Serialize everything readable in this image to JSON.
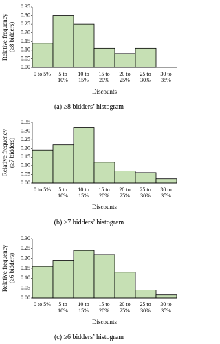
{
  "chart_data": [
    {
      "type": "bar",
      "title": "(a) ≥8 bidders’ histogram",
      "xlabel": "Discounts",
      "ylabel": "Relative frequency (≥8 bidders)",
      "categories": [
        "0 to 5%",
        "5 to 10%",
        "10 to 15%",
        "15 to 20%",
        "20 to 25%",
        "25 to 30%",
        "30 to 35%"
      ],
      "values": [
        0.14,
        0.3,
        0.25,
        0.11,
        0.08,
        0.11,
        0
      ],
      "color": "#c6e0b4",
      "ylim": [
        0,
        0.35
      ],
      "yticks": [
        {
          "value": 0,
          "label": "0.00"
        },
        {
          "value": 0.05,
          "label": "0.05"
        },
        {
          "value": 0.1,
          "label": "0.10"
        },
        {
          "value": 0.15,
          "label": "0.15"
        },
        {
          "value": 0.2,
          "label": "0.20"
        },
        {
          "value": 0.25,
          "label": "0.25"
        },
        {
          "value": 0.3,
          "label": "0.30"
        },
        {
          "value": 0.35,
          "label": "0.35"
        }
      ]
    },
    {
      "type": "bar",
      "title": "(b) ≥7 bidders’ histogram",
      "xlabel": "Discounts",
      "ylabel": "Relative frequency (≥7 bidders)",
      "categories": [
        "0 to 5%",
        "5 to 10%",
        "10 to 15%",
        "15 to 20%",
        "20 to 25%",
        "25 to 30%",
        "30 to 35%"
      ],
      "values": [
        0.19,
        0.22,
        0.32,
        0.12,
        0.07,
        0.06,
        0.025
      ],
      "color": "#c6e0b4",
      "ylim": [
        0,
        0.35
      ],
      "yticks": [
        {
          "value": 0,
          "label": "0.00"
        },
        {
          "value": 0.05,
          "label": "0.05"
        },
        {
          "value": 0.1,
          "label": "0.10"
        },
        {
          "value": 0.15,
          "label": "0.15"
        },
        {
          "value": 0.2,
          "label": "0.20"
        },
        {
          "value": 0.25,
          "label": "0.25"
        },
        {
          "value": 0.3,
          "label": "0.30"
        },
        {
          "value": 0.35,
          "label": "0.35"
        }
      ]
    },
    {
      "type": "bar",
      "title": "(c) ≥6 bidders’ histogram",
      "xlabel": "Discounts",
      "ylabel": "Relative frequency (≥6 bidders)",
      "categories": [
        "0 to 5%",
        "5 to 10%",
        "10 to 15%",
        "15 to 20%",
        "20 to 25%",
        "25 to 30%",
        "30 to 35%"
      ],
      "values": [
        0.16,
        0.19,
        0.24,
        0.22,
        0.13,
        0.04,
        0.015
      ],
      "color": "#c6e0b4",
      "ylim": [
        0,
        0.3
      ],
      "yticks": [
        {
          "value": 0,
          "label": "0.00"
        },
        {
          "value": 0.05,
          "label": "0.05"
        },
        {
          "value": 0.1,
          "label": "0.10"
        },
        {
          "value": 0.15,
          "label": "0.15"
        },
        {
          "value": 0.2,
          "label": "0.20"
        },
        {
          "value": 0.25,
          "label": "0.25"
        },
        {
          "value": 0.3,
          "label": "0.30"
        }
      ]
    }
  ]
}
